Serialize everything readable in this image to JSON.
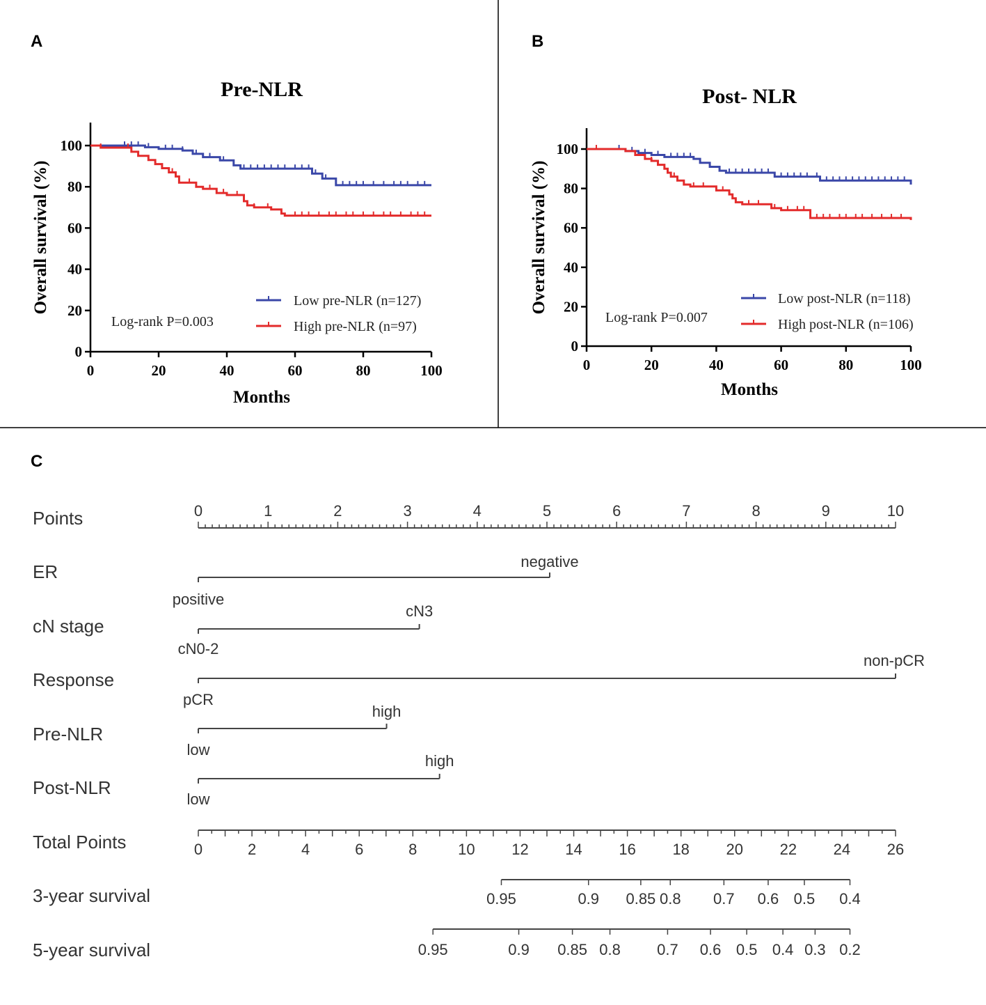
{
  "panels": {
    "a": "A",
    "b": "B",
    "c": "C"
  },
  "colors": {
    "low": "#3a47a8",
    "high": "#e32b2b",
    "axis": "#000000",
    "nomo": "#444444"
  },
  "chart_data": [
    {
      "type": "line",
      "title": "Pre-NLR",
      "xlabel": "Months",
      "ylabel": "Overall survival (%)",
      "xlim": [
        0,
        100
      ],
      "ylim": [
        0,
        100
      ],
      "xticks": [
        0,
        20,
        40,
        60,
        80,
        100
      ],
      "yticks": [
        0,
        20,
        40,
        60,
        80,
        100
      ],
      "annotation": "Log-rank P=0.003",
      "series": [
        {
          "name": "Low pre-NLR (n=127)",
          "color": "#3a47a8",
          "steps": [
            [
              0,
              100
            ],
            [
              16,
              99.2
            ],
            [
              20,
              98.4
            ],
            [
              27,
              97.6
            ],
            [
              30,
              96
            ],
            [
              33,
              94.4
            ],
            [
              38,
              92.8
            ],
            [
              42,
              90.4
            ],
            [
              44,
              88.8
            ],
            [
              58,
              88.8
            ],
            [
              65,
              86.4
            ],
            [
              68,
              84
            ],
            [
              72,
              80.8
            ],
            [
              100,
              80.8
            ]
          ],
          "censor": [
            10,
            12,
            14,
            17,
            22,
            24,
            27,
            31,
            35,
            39,
            45,
            47,
            49,
            51,
            53,
            55,
            57,
            60,
            62,
            64,
            66,
            69,
            74,
            76,
            78,
            80,
            83,
            86,
            89,
            91,
            93,
            96,
            98
          ]
        },
        {
          "name": "High pre-NLR (n=97)",
          "color": "#e32b2b",
          "steps": [
            [
              0,
              100
            ],
            [
              3,
              99
            ],
            [
              12,
              97
            ],
            [
              14,
              95
            ],
            [
              17,
              93
            ],
            [
              19,
              91
            ],
            [
              21,
              89
            ],
            [
              23,
              87
            ],
            [
              25,
              85
            ],
            [
              26,
              82
            ],
            [
              30,
              82
            ],
            [
              31,
              80
            ],
            [
              33,
              79
            ],
            [
              37,
              77
            ],
            [
              40,
              76
            ],
            [
              44,
              76
            ],
            [
              45,
              73
            ],
            [
              46,
              71
            ],
            [
              48,
              70
            ],
            [
              52,
              70
            ],
            [
              53,
              69
            ],
            [
              56,
              67
            ],
            [
              57,
              66
            ],
            [
              100,
              66
            ]
          ],
          "censor": [
            3,
            11,
            24,
            29,
            35,
            39,
            43,
            48,
            52,
            60,
            62,
            64,
            67,
            70,
            72,
            75,
            77,
            80,
            83,
            86,
            88,
            91,
            94,
            96,
            98
          ]
        }
      ]
    },
    {
      "type": "line",
      "title": "Post- NLR",
      "xlabel": "Months",
      "ylabel": "Overall survival (%)",
      "xlim": [
        0,
        100
      ],
      "ylim": [
        0,
        100
      ],
      "xticks": [
        0,
        20,
        40,
        60,
        80,
        100
      ],
      "yticks": [
        0,
        20,
        40,
        60,
        80,
        100
      ],
      "annotation": "Log-rank P=0.007",
      "series": [
        {
          "name": "Low post-NLR (n=118)",
          "color": "#3a47a8",
          "steps": [
            [
              0,
              100
            ],
            [
              12,
              99
            ],
            [
              16,
              98
            ],
            [
              20,
              97
            ],
            [
              24,
              96
            ],
            [
              33,
              95
            ],
            [
              35,
              93
            ],
            [
              38,
              91
            ],
            [
              41,
              89
            ],
            [
              43,
              88
            ],
            [
              55,
              88
            ],
            [
              58,
              86
            ],
            [
              70,
              86
            ],
            [
              72,
              84
            ],
            [
              100,
              82
            ]
          ],
          "censor": [
            10,
            14,
            18,
            22,
            26,
            28,
            30,
            32,
            35,
            38,
            44,
            46,
            48,
            50,
            52,
            54,
            56,
            60,
            62,
            64,
            66,
            68,
            71,
            74,
            76,
            78,
            80,
            82,
            84,
            86,
            88,
            90,
            92,
            94,
            96,
            98
          ]
        },
        {
          "name": "High post-NLR (n=106)",
          "color": "#e32b2b",
          "steps": [
            [
              0,
              100
            ],
            [
              12,
              99
            ],
            [
              15,
              97
            ],
            [
              18,
              95
            ],
            [
              20,
              94
            ],
            [
              22,
              92
            ],
            [
              24,
              90
            ],
            [
              25,
              88
            ],
            [
              26,
              86
            ],
            [
              28,
              84
            ],
            [
              30,
              82
            ],
            [
              32,
              81
            ],
            [
              38,
              81
            ],
            [
              40,
              79
            ],
            [
              44,
              77
            ],
            [
              45,
              75
            ],
            [
              46,
              73
            ],
            [
              48,
              72
            ],
            [
              55,
              72
            ],
            [
              57,
              70
            ],
            [
              60,
              69
            ],
            [
              68,
              69
            ],
            [
              69,
              65
            ],
            [
              100,
              64
            ]
          ],
          "censor": [
            3,
            20,
            27,
            33,
            36,
            42,
            50,
            53,
            58,
            62,
            65,
            67,
            71,
            73,
            75,
            78,
            80,
            83,
            85,
            88,
            91,
            94,
            97
          ]
        }
      ]
    }
  ],
  "nomogram": {
    "variables": [
      {
        "name": "Points",
        "type": "scale",
        "ticks": [
          "0",
          "1",
          "2",
          "3",
          "4",
          "5",
          "6",
          "7",
          "8",
          "9",
          "10"
        ]
      },
      {
        "name": "ER",
        "type": "variable",
        "max_points": 5.04,
        "low_label": "positive",
        "high_label": "negative"
      },
      {
        "name": "cN stage",
        "type": "variable",
        "max_points": 3.17,
        "low_label": "cN0-2",
        "high_label": "cN3"
      },
      {
        "name": "Response",
        "type": "variable",
        "max_points": 10.0,
        "low_label": "pCR",
        "high_label": "non-pCR"
      },
      {
        "name": "Pre-NLR",
        "type": "variable",
        "max_points": 2.7,
        "low_label": "low",
        "high_label": "high"
      },
      {
        "name": "Post-NLR",
        "type": "variable",
        "max_points": 3.46,
        "low_label": "low",
        "high_label": "high"
      },
      {
        "name": "Total Points",
        "type": "total",
        "ticks": [
          "0",
          "2",
          "4",
          "6",
          "8",
          "10",
          "12",
          "14",
          "16",
          "18",
          "20",
          "22",
          "24",
          "26"
        ]
      },
      {
        "name": "3-year survival",
        "type": "prob",
        "ticks": [
          {
            "label": "0.95",
            "total": 11.3
          },
          {
            "label": "0.9",
            "total": 14.55
          },
          {
            "label": "0.85",
            "total": 16.5
          },
          {
            "label": "0.8",
            "total": 17.6
          },
          {
            "label": "0.7",
            "total": 19.6
          },
          {
            "label": "0.6",
            "total": 21.25
          },
          {
            "label": "0.5",
            "total": 22.6
          },
          {
            "label": "0.4",
            "total": 24.3
          }
        ]
      },
      {
        "name": "5-year survival",
        "type": "prob",
        "ticks": [
          {
            "label": "0.95",
            "total": 8.75
          },
          {
            "label": "0.9",
            "total": 11.95
          },
          {
            "label": "0.85",
            "total": 13.95
          },
          {
            "label": "0.8",
            "total": 15.35
          },
          {
            "label": "0.7",
            "total": 17.5
          },
          {
            "label": "0.6",
            "total": 19.1
          },
          {
            "label": "0.5",
            "total": 20.45
          },
          {
            "label": "0.4",
            "total": 21.8
          },
          {
            "label": "0.3",
            "total": 23.0
          },
          {
            "label": "0.2",
            "total": 24.3
          }
        ]
      }
    ]
  }
}
